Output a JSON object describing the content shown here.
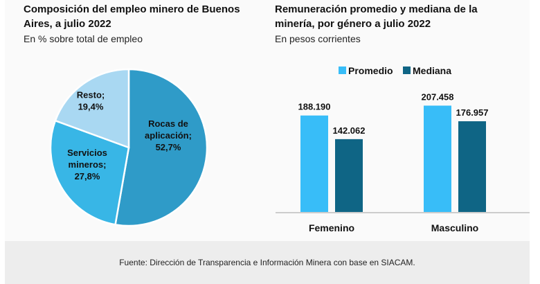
{
  "chart_data": [
    {
      "type": "pie",
      "title": "Composición del empleo minero de Buenos Aires, a julio 2022",
      "subtitle": "En % sobre total de empleo",
      "slices": [
        {
          "label_lines": [
            "Rocas de",
            "aplicación;"
          ],
          "label": "Rocas de aplicación",
          "value": 52.7,
          "value_label": "52,7%",
          "color": "#2f9bc8"
        },
        {
          "label_lines": [
            "Servicios",
            "mineros;"
          ],
          "label": "Servicios mineros",
          "value": 27.8,
          "value_label": "27,8%",
          "color": "#38b6e6"
        },
        {
          "label_lines": [
            "Resto;"
          ],
          "label": "Resto",
          "value": 19.4,
          "value_label": "19,4%",
          "color": "#a9d8f2"
        }
      ]
    },
    {
      "type": "bar",
      "title": "Remuneración promedio y mediana de la minería, por género a julio 2022",
      "subtitle": "En pesos corrientes",
      "categories": [
        "Femenino",
        "Masculino"
      ],
      "series": [
        {
          "name": "Promedio",
          "values": [
            188190,
            207458
          ],
          "labels": [
            "188.190",
            "207.458"
          ],
          "color": "#38bdf8"
        },
        {
          "name": "Mediana",
          "values": [
            142062,
            176957
          ],
          "labels": [
            "142.062",
            "176.957"
          ],
          "color": "#0f6585"
        }
      ],
      "ylim": [
        0,
        250000
      ],
      "legend": "top-center",
      "grid": false
    }
  ],
  "header": {
    "left_title_lines": [
      "Composición del empleo minero de Buenos",
      "Aires, a julio 2022"
    ],
    "left_subtitle": "En % sobre total de empleo",
    "right_title_lines": [
      "Remuneración promedio y mediana de la",
      "minería, por género a julio 2022"
    ],
    "right_subtitle": "En pesos corrientes"
  },
  "footer": {
    "source": "Fuente: Dirección de Transparencia e Información Minera con base en SIACAM."
  }
}
